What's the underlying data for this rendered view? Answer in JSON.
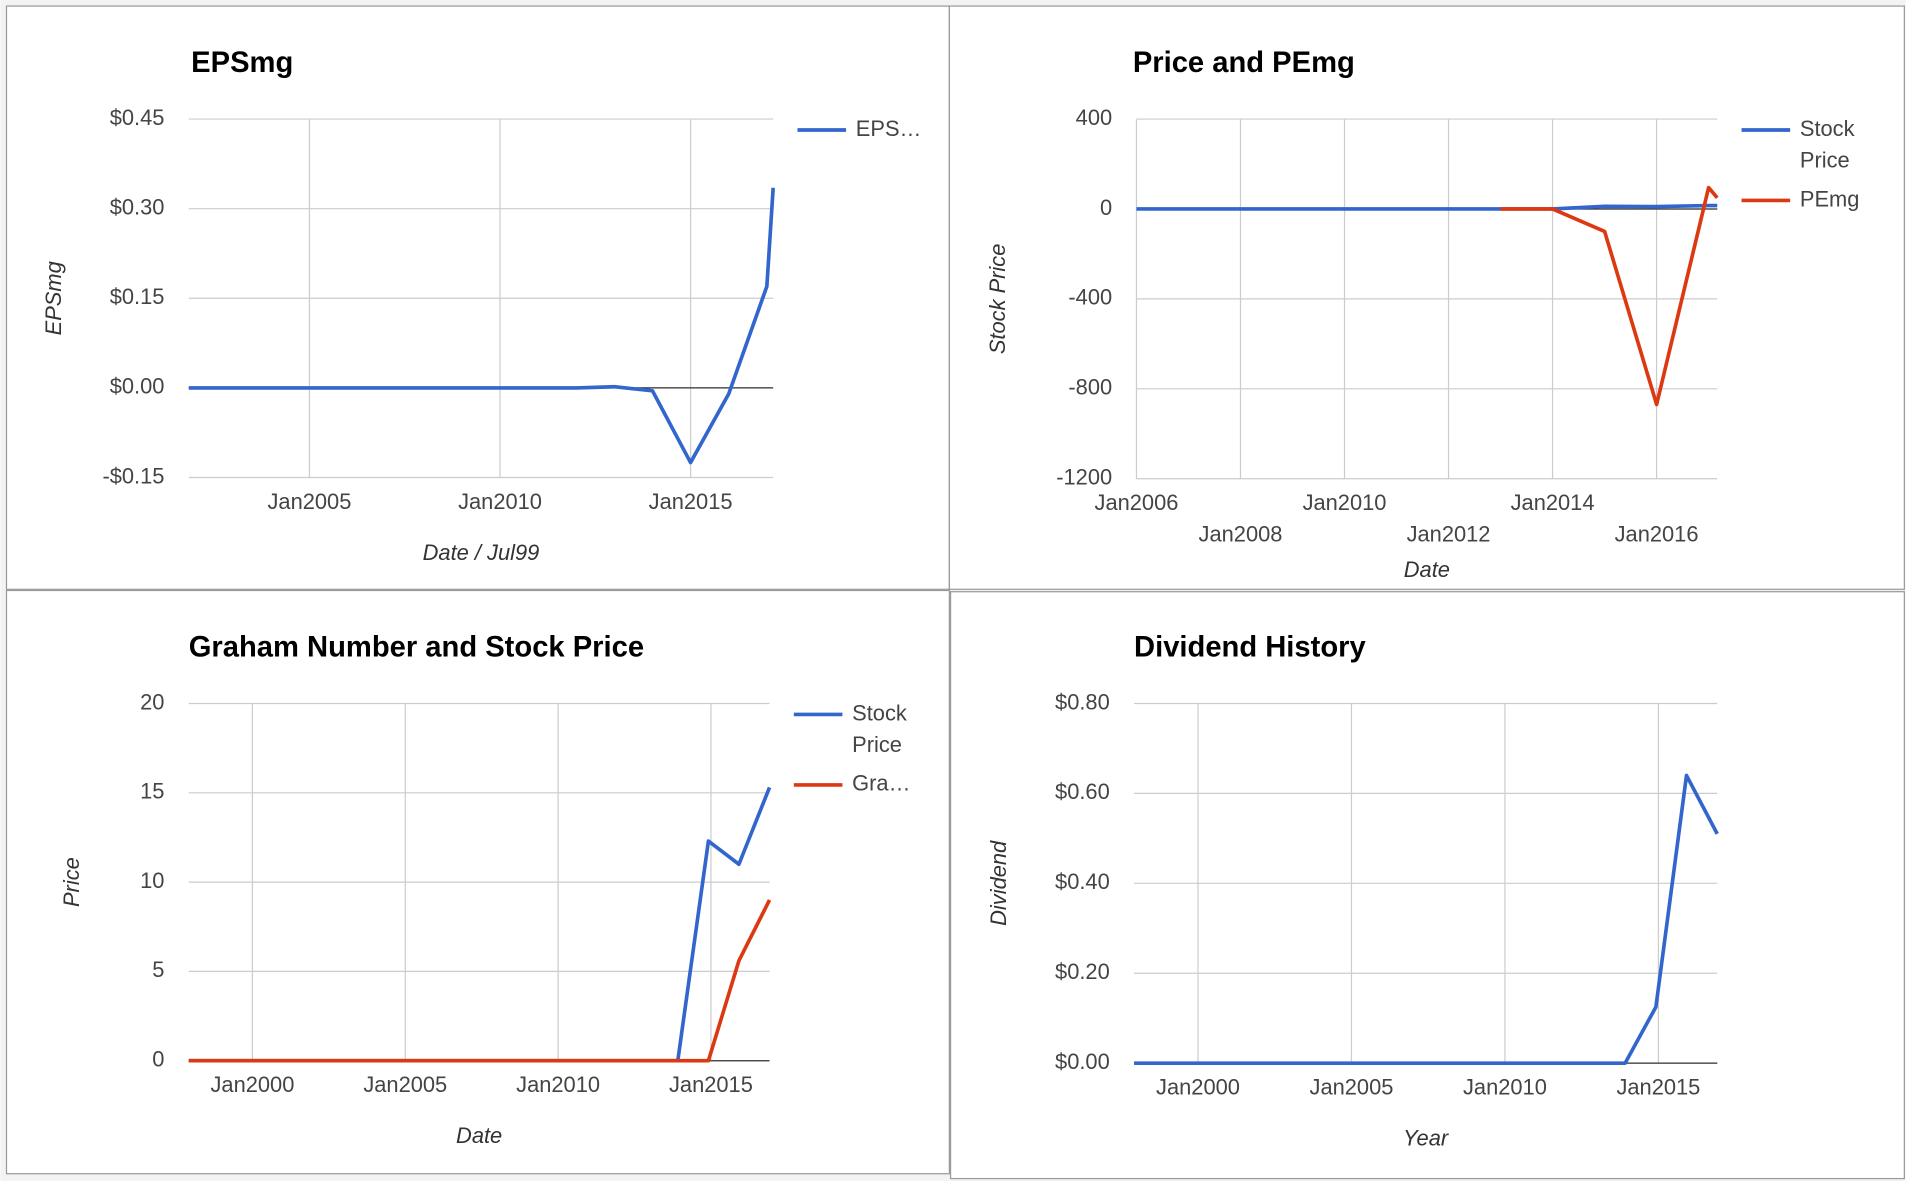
{
  "chart_data": [
    {
      "type": "line",
      "title": "EPSmg",
      "x_label": "Date / Jul99",
      "y_label": "EPSmg",
      "x": [
        "2001-11",
        "2002-01",
        "2003-01",
        "2004-01",
        "2005-01",
        "2006-01",
        "2007-01",
        "2008-01",
        "2009-01",
        "2010-01",
        "2011-01",
        "2012-01",
        "2013-01",
        "2014-01",
        "2015-01",
        "2016-01",
        "2017-01",
        "2017-03"
      ],
      "series": [
        {
          "name": "EPS…",
          "color": "#3366cc",
          "values": [
            0,
            0,
            0,
            0,
            0,
            0,
            0,
            0,
            0,
            0,
            0,
            0,
            0.002,
            -0.005,
            -0.125,
            -0.01,
            0.17,
            0.335
          ]
        }
      ],
      "xlim": [
        "2001-11",
        "2017-03"
      ],
      "xticks": [
        {
          "value": "2005-01",
          "label": "Jan2005"
        },
        {
          "value": "2010-01",
          "label": "Jan2010"
        },
        {
          "value": "2015-01",
          "label": "Jan2015"
        }
      ],
      "ylim": [
        -0.15,
        0.45
      ],
      "yticks": [
        {
          "value": -0.15,
          "label": "-$0.15"
        },
        {
          "value": 0,
          "label": "$0.00"
        },
        {
          "value": 0.15,
          "label": "$0.15"
        },
        {
          "value": 0.3,
          "label": "$0.30"
        },
        {
          "value": 0.45,
          "label": "$0.45"
        }
      ],
      "grid": true,
      "legend": "right"
    },
    {
      "type": "line",
      "title": "Price and PEmg",
      "x_label": "Date",
      "y_label": "Stock Price",
      "x": [
        "2006-01",
        "2007-01",
        "2008-01",
        "2009-01",
        "2010-01",
        "2011-01",
        "2012-01",
        "2013-01",
        "2014-01",
        "2015-01",
        "2016-01",
        "2017-01",
        "2017-03"
      ],
      "series": [
        {
          "name": "Stock Price",
          "color": "#3366cc",
          "values": [
            0,
            0,
            0,
            0,
            0,
            0,
            0,
            0,
            0,
            12,
            11,
            15,
            15
          ]
        },
        {
          "name": "PEmg",
          "color": "#dc3912",
          "values": [
            null,
            null,
            null,
            null,
            null,
            null,
            null,
            0,
            0,
            -100,
            -870,
            95,
            50
          ]
        }
      ],
      "xlim": [
        "2006-01",
        "2017-03"
      ],
      "xticks": [
        {
          "value": "2006-01",
          "label": "Jan2006"
        },
        {
          "value": "2008-01",
          "label": "Jan2008"
        },
        {
          "value": "2010-01",
          "label": "Jan2010"
        },
        {
          "value": "2012-01",
          "label": "Jan2012"
        },
        {
          "value": "2014-01",
          "label": "Jan2014"
        },
        {
          "value": "2016-01",
          "label": "Jan2016"
        }
      ],
      "ylim": [
        -1200,
        400
      ],
      "yticks": [
        -1200,
        -800,
        -400,
        0,
        400
      ],
      "grid": true,
      "legend": "right"
    },
    {
      "type": "line",
      "title": "Graham Number and Stock Price",
      "x_label": "Date",
      "y_label": "Price",
      "x": [
        "1997-12",
        "1998-12",
        "1999-12",
        "2000-12",
        "2001-12",
        "2002-12",
        "2003-12",
        "2004-12",
        "2005-12",
        "2006-12",
        "2007-12",
        "2008-12",
        "2009-12",
        "2010-12",
        "2011-12",
        "2012-12",
        "2013-12",
        "2014-12",
        "2015-12",
        "2016-12"
      ],
      "series": [
        {
          "name": "Stock Price",
          "color": "#3366cc",
          "values": [
            0,
            0,
            0,
            0,
            0,
            0,
            0,
            0,
            0,
            0,
            0,
            0,
            0,
            0,
            0,
            0,
            0,
            12.3,
            11,
            15.3
          ]
        },
        {
          "name": "Gra…",
          "color": "#dc3912",
          "values": [
            0,
            0,
            0,
            0,
            0,
            0,
            0,
            0,
            0,
            0,
            0,
            0,
            0,
            0,
            0,
            0,
            0,
            0,
            5.6,
            9
          ]
        }
      ],
      "xlim": [
        "1997-12",
        "2016-12"
      ],
      "xticks": [
        {
          "value": "2000-01",
          "label": "Jan2000"
        },
        {
          "value": "2005-01",
          "label": "Jan2005"
        },
        {
          "value": "2010-01",
          "label": "Jan2010"
        },
        {
          "value": "2015-01",
          "label": "Jan2015"
        }
      ],
      "ylim": [
        0,
        20
      ],
      "yticks": [
        0,
        5,
        10,
        15,
        20
      ],
      "grid": true,
      "legend": "right"
    },
    {
      "type": "line",
      "title": "Dividend History",
      "x_label": "Year",
      "y_label": "Dividend",
      "x": [
        "1997-12",
        "1998-12",
        "1999-12",
        "2000-12",
        "2001-12",
        "2002-12",
        "2003-12",
        "2004-12",
        "2005-12",
        "2006-12",
        "2007-12",
        "2008-12",
        "2009-12",
        "2010-12",
        "2011-12",
        "2012-12",
        "2013-12",
        "2014-12",
        "2015-12",
        "2016-12"
      ],
      "series": [
        {
          "name": "Dividend",
          "color": "#3366cc",
          "values": [
            0,
            0,
            0,
            0,
            0,
            0,
            0,
            0,
            0,
            0,
            0,
            0,
            0,
            0,
            0,
            0,
            0,
            0.125,
            0.64,
            0.51
          ]
        }
      ],
      "xlim": [
        "1997-12",
        "2016-12"
      ],
      "xticks": [
        {
          "value": "2000-01",
          "label": "Jan2000"
        },
        {
          "value": "2005-01",
          "label": "Jan2005"
        },
        {
          "value": "2010-01",
          "label": "Jan2010"
        },
        {
          "value": "2015-01",
          "label": "Jan2015"
        }
      ],
      "ylim": [
        0,
        0.8
      ],
      "yticks": [
        {
          "value": 0,
          "label": "$0.00"
        },
        {
          "value": 0.2,
          "label": "$0.20"
        },
        {
          "value": 0.4,
          "label": "$0.40"
        },
        {
          "value": 0.6,
          "label": "$0.60"
        },
        {
          "value": 0.8,
          "label": "$0.80"
        }
      ],
      "grid": true
    }
  ]
}
